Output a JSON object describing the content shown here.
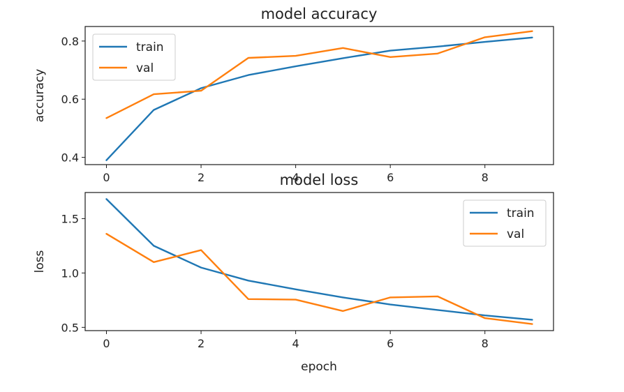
{
  "chart_data": [
    {
      "type": "line",
      "title": "model accuracy",
      "xlabel": "",
      "ylabel": "accuracy",
      "xlim": [
        -0.45,
        9.45
      ],
      "ylim": [
        0.375,
        0.85
      ],
      "xticks": [
        0,
        2,
        4,
        6,
        8
      ],
      "yticks": [
        0.4,
        0.6,
        0.8
      ],
      "ytick_labels": [
        "0.4",
        "0.6",
        "0.8"
      ],
      "x": [
        0,
        1,
        2,
        3,
        4,
        5,
        6,
        7,
        8,
        9
      ],
      "series": [
        {
          "name": "train",
          "color": "#1f77b4",
          "values": [
            0.39,
            0.563,
            0.638,
            0.683,
            0.713,
            0.741,
            0.767,
            0.781,
            0.797,
            0.812
          ]
        },
        {
          "name": "val",
          "color": "#ff7f0e",
          "values": [
            0.535,
            0.617,
            0.629,
            0.742,
            0.749,
            0.776,
            0.745,
            0.757,
            0.813,
            0.834
          ]
        }
      ],
      "legend": "upper left",
      "grid": false
    },
    {
      "type": "line",
      "title": "model loss",
      "xlabel": "epoch",
      "ylabel": "loss",
      "xlim": [
        -0.45,
        9.45
      ],
      "ylim": [
        0.47,
        1.74
      ],
      "xticks": [
        0,
        2,
        4,
        6,
        8
      ],
      "yticks": [
        0.5,
        1.0,
        1.5
      ],
      "ytick_labels": [
        "0.5",
        "1.0",
        "1.5"
      ],
      "x": [
        0,
        1,
        2,
        3,
        4,
        5,
        6,
        7,
        8,
        9
      ],
      "series": [
        {
          "name": "train",
          "color": "#1f77b4",
          "values": [
            1.68,
            1.25,
            1.05,
            0.93,
            0.85,
            0.775,
            0.71,
            0.66,
            0.61,
            0.57
          ]
        },
        {
          "name": "val",
          "color": "#ff7f0e",
          "values": [
            1.36,
            1.1,
            1.21,
            0.76,
            0.755,
            0.65,
            0.775,
            0.785,
            0.585,
            0.53
          ]
        }
      ],
      "legend": "upper right",
      "grid": false
    }
  ]
}
